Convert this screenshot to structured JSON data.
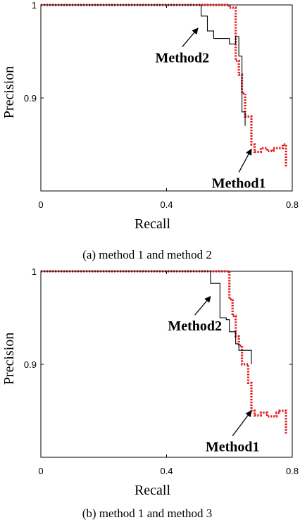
{
  "chart_data": [
    {
      "type": "line",
      "title": "",
      "xlabel": "Recall",
      "ylabel": "Precision",
      "xlim": [
        0,
        0.8
      ],
      "ylim": [
        0.8,
        1.0
      ],
      "xticks": [
        "0",
        "0.4",
        "0.8"
      ],
      "yticks": [
        "0.9",
        "1"
      ],
      "caption": "(a) method 1 and method 2",
      "series": [
        {
          "name": "Method1",
          "color": "#e41a1c",
          "style": "dotted",
          "points": [
            [
              0,
              1.0
            ],
            [
              0.6,
              1.0
            ],
            [
              0.6,
              0.997
            ],
            [
              0.62,
              0.997
            ],
            [
              0.62,
              0.94
            ],
            [
              0.63,
              0.94
            ],
            [
              0.63,
              0.925
            ],
            [
              0.64,
              0.925
            ],
            [
              0.64,
              0.905
            ],
            [
              0.65,
              0.905
            ],
            [
              0.65,
              0.88
            ],
            [
              0.67,
              0.88
            ],
            [
              0.67,
              0.85
            ],
            [
              0.68,
              0.85
            ],
            [
              0.68,
              0.842
            ],
            [
              0.7,
              0.842
            ],
            [
              0.7,
              0.846
            ],
            [
              0.72,
              0.846
            ],
            [
              0.72,
              0.843
            ],
            [
              0.74,
              0.843
            ],
            [
              0.74,
              0.846
            ],
            [
              0.77,
              0.846
            ],
            [
              0.77,
              0.85
            ],
            [
              0.78,
              0.85
            ],
            [
              0.78,
              0.825
            ]
          ]
        },
        {
          "name": "Method2",
          "color": "#000000",
          "style": "solid",
          "points": [
            [
              0,
              1.0
            ],
            [
              0.51,
              1.0
            ],
            [
              0.51,
              0.988
            ],
            [
              0.53,
              0.988
            ],
            [
              0.53,
              0.972
            ],
            [
              0.55,
              0.972
            ],
            [
              0.55,
              0.964
            ],
            [
              0.6,
              0.964
            ],
            [
              0.6,
              0.958
            ],
            [
              0.62,
              0.958
            ],
            [
              0.62,
              0.966
            ],
            [
              0.63,
              0.966
            ],
            [
              0.63,
              0.945
            ],
            [
              0.64,
              0.945
            ],
            [
              0.64,
              0.885
            ],
            [
              0.65,
              0.885
            ],
            [
              0.65,
              0.87
            ]
          ]
        }
      ],
      "annotations": [
        {
          "text": "Method2",
          "target": "Method2",
          "at": [
            0.5,
            0.975
          ],
          "arrow_from": [
            0.45,
            0.955
          ]
        },
        {
          "text": "Method1",
          "target": "Method1",
          "at": [
            0.67,
            0.845
          ],
          "arrow_from": [
            0.63,
            0.82
          ]
        }
      ]
    },
    {
      "type": "line",
      "title": "",
      "xlabel": "Recall",
      "ylabel": "Precision",
      "xlim": [
        0,
        0.8
      ],
      "ylim": [
        0.8,
        1.0
      ],
      "xticks": [
        "0",
        "0.4",
        "0.8"
      ],
      "yticks": [
        "0.9",
        "1"
      ],
      "caption": "(b) method 1 and method 3",
      "series": [
        {
          "name": "Method1",
          "color": "#e41a1c",
          "style": "dotted",
          "points": [
            [
              0,
              1.0
            ],
            [
              0.6,
              1.0
            ],
            [
              0.6,
              0.97
            ],
            [
              0.61,
              0.97
            ],
            [
              0.61,
              0.952
            ],
            [
              0.62,
              0.952
            ],
            [
              0.62,
              0.93
            ],
            [
              0.63,
              0.93
            ],
            [
              0.63,
              0.92
            ],
            [
              0.64,
              0.92
            ],
            [
              0.64,
              0.9
            ],
            [
              0.66,
              0.9
            ],
            [
              0.66,
              0.88
            ],
            [
              0.67,
              0.88
            ],
            [
              0.67,
              0.85
            ],
            [
              0.68,
              0.85
            ],
            [
              0.68,
              0.845
            ],
            [
              0.7,
              0.845
            ],
            [
              0.7,
              0.848
            ],
            [
              0.72,
              0.848
            ],
            [
              0.72,
              0.844
            ],
            [
              0.75,
              0.844
            ],
            [
              0.75,
              0.848
            ],
            [
              0.76,
              0.848
            ],
            [
              0.76,
              0.85
            ],
            [
              0.78,
              0.85
            ],
            [
              0.78,
              0.825
            ]
          ]
        },
        {
          "name": "Method2",
          "color": "#000000",
          "style": "solid",
          "points": [
            [
              0,
              1.0
            ],
            [
              0.54,
              1.0
            ],
            [
              0.54,
              0.987
            ],
            [
              0.57,
              0.987
            ],
            [
              0.57,
              0.95
            ],
            [
              0.59,
              0.95
            ],
            [
              0.59,
              0.948
            ],
            [
              0.6,
              0.948
            ],
            [
              0.6,
              0.935
            ],
            [
              0.62,
              0.935
            ],
            [
              0.62,
              0.922
            ],
            [
              0.63,
              0.922
            ],
            [
              0.63,
              0.915
            ],
            [
              0.67,
              0.915
            ],
            [
              0.67,
              0.9
            ]
          ]
        }
      ],
      "annotations": [
        {
          "text": "Method2",
          "target": "Method2",
          "at": [
            0.54,
            0.973
          ],
          "arrow_from": [
            0.49,
            0.953
          ]
        },
        {
          "text": "Method1",
          "target": "Method1",
          "at": [
            0.67,
            0.85
          ],
          "arrow_from": [
            0.61,
            0.823
          ]
        }
      ]
    }
  ]
}
